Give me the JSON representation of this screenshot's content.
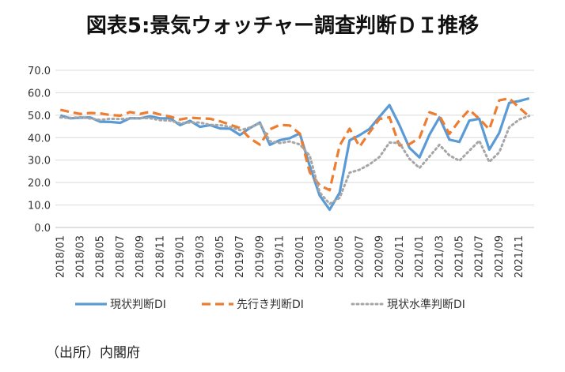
{
  "chart_data": {
    "type": "line",
    "title": "図表5:景気ウォッチャー調査判断ＤＩ推移",
    "xlabel": "",
    "ylabel": "",
    "ylim": [
      0,
      70
    ],
    "y_ticks": [
      "70.0",
      "60.0",
      "50.0",
      "40.0",
      "30.0",
      "20.0",
      "10.0",
      "0.0"
    ],
    "grid": true,
    "legend_position": "bottom",
    "x": [
      "2018/01",
      "2018/02",
      "2018/03",
      "2018/04",
      "2018/05",
      "2018/06",
      "2018/07",
      "2018/08",
      "2018/09",
      "2018/10",
      "2018/11",
      "2018/12",
      "2019/01",
      "2019/02",
      "2019/03",
      "2019/04",
      "2019/05",
      "2019/06",
      "2019/07",
      "2019/08",
      "2019/09",
      "2019/10",
      "2019/11",
      "2019/12",
      "2020/01",
      "2020/02",
      "2020/03",
      "2020/04",
      "2020/05",
      "2020/06",
      "2020/07",
      "2020/08",
      "2020/09",
      "2020/10",
      "2020/11",
      "2020/12",
      "2021/01",
      "2021/02",
      "2021/03",
      "2021/04",
      "2021/05",
      "2021/06",
      "2021/07",
      "2021/08",
      "2021/09",
      "2021/10",
      "2021/11",
      "2021/12"
    ],
    "x_tick_labels": [
      "2018/01",
      "2018/03",
      "2018/05",
      "2018/07",
      "2018/09",
      "2018/11",
      "2019/01",
      "2019/03",
      "2019/05",
      "2019/07",
      "2019/09",
      "2019/11",
      "2020/01",
      "2020/03",
      "2020/05",
      "2020/07",
      "2020/09",
      "2020/11",
      "2021/01",
      "2021/03",
      "2021/05",
      "2021/07",
      "2021/09",
      "2021/11"
    ],
    "series": [
      {
        "name": "現状判断DI",
        "color": "#5B9BD5",
        "style": "solid",
        "values": [
          49.9,
          48.6,
          48.9,
          49.0,
          47.1,
          47.0,
          46.6,
          48.7,
          48.6,
          49.5,
          48.6,
          48.6,
          45.6,
          47.5,
          44.8,
          45.6,
          44.1,
          44.0,
          41.2,
          44.3,
          46.7,
          36.8,
          38.9,
          39.8,
          41.9,
          27.4,
          14.2,
          7.9,
          15.5,
          38.8,
          41.1,
          43.9,
          49.3,
          54.5,
          45.6,
          35.5,
          31.2,
          41.3,
          49.0,
          39.1,
          38.1,
          47.6,
          48.4,
          34.7,
          42.1,
          55.5,
          56.3,
          57.5
        ]
      },
      {
        "name": "先行き判断DI",
        "color": "#ED7D31",
        "style": "dash",
        "values": [
          52.4,
          51.4,
          50.6,
          51.0,
          50.8,
          50.1,
          49.8,
          51.4,
          50.6,
          51.5,
          50.3,
          49.4,
          48.1,
          48.9,
          48.6,
          48.4,
          47.3,
          45.8,
          44.3,
          39.7,
          36.9,
          43.7,
          45.7,
          45.4,
          41.8,
          24.6,
          18.8,
          16.6,
          36.5,
          44.0,
          36.0,
          42.4,
          48.3,
          49.1,
          36.5,
          37.1,
          39.9,
          51.3,
          49.8,
          41.7,
          47.6,
          52.4,
          48.4,
          43.7,
          56.6,
          57.5,
          53.4,
          49.4
        ]
      },
      {
        "name": "現状水準判断DI",
        "color": "#A6A6A6",
        "style": "dot",
        "values": [
          49.0,
          48.8,
          49.1,
          48.5,
          47.9,
          48.4,
          48.3,
          48.5,
          48.8,
          48.6,
          47.8,
          47.6,
          46.4,
          46.8,
          46.7,
          45.7,
          45.6,
          44.8,
          43.3,
          44.5,
          46.5,
          38.4,
          37.6,
          38.3,
          37.0,
          32.0,
          15.6,
          10.5,
          13.2,
          24.4,
          25.7,
          28.1,
          31.4,
          37.8,
          37.6,
          30.6,
          26.5,
          31.6,
          36.8,
          32.1,
          29.7,
          34.2,
          38.6,
          29.2,
          33.5,
          44.6,
          48.1,
          49.7
        ]
      }
    ],
    "source": "（出所）内閣府"
  }
}
